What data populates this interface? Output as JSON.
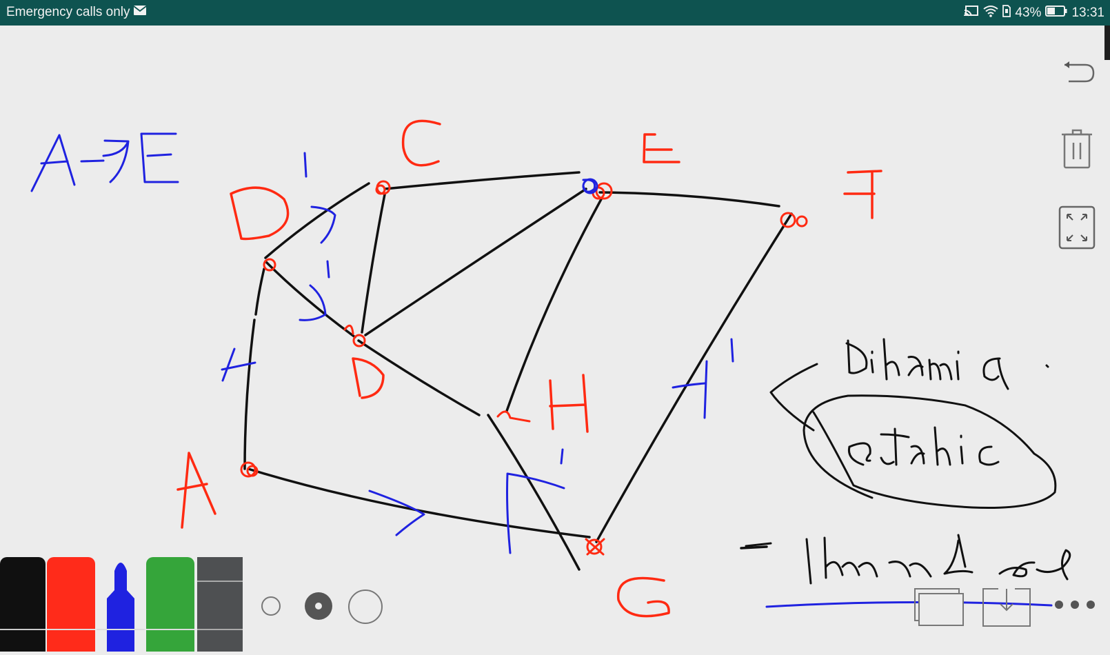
{
  "status_bar": {
    "left_text": "Emergency calls only",
    "battery_percent": "43%",
    "time": "13:31",
    "icons": [
      "mail-icon",
      "cast-icon",
      "wifi-icon",
      "sim-icon",
      "battery-icon"
    ]
  },
  "canvas": {
    "vertex_labels": [
      "A",
      "B",
      "C",
      "D",
      "E",
      "F",
      "G",
      "H"
    ],
    "notes": [
      "A→E",
      "dinamic",
      "static",
      "Dijkstra"
    ],
    "ink_colors": {
      "black": "#111111",
      "red": "#ff2a12",
      "blue": "#1f22e0"
    }
  },
  "side_toolbar": [
    "undo-icon",
    "trash-icon",
    "fullscreen-icon"
  ],
  "pens": [
    {
      "name": "black",
      "color": "#101010"
    },
    {
      "name": "red",
      "color": "#ff2b1a"
    },
    {
      "name": "blue",
      "color": "#1f22e0",
      "selected": true
    },
    {
      "name": "green",
      "color": "#35a53a"
    },
    {
      "name": "eraser",
      "color": "#4e5052"
    }
  ],
  "stroke_sizes": [
    "small",
    "medium",
    "large"
  ],
  "selected_stroke_size": "medium",
  "bottom_toolbar": [
    "pages-icon",
    "save-icon",
    "more-icon"
  ]
}
